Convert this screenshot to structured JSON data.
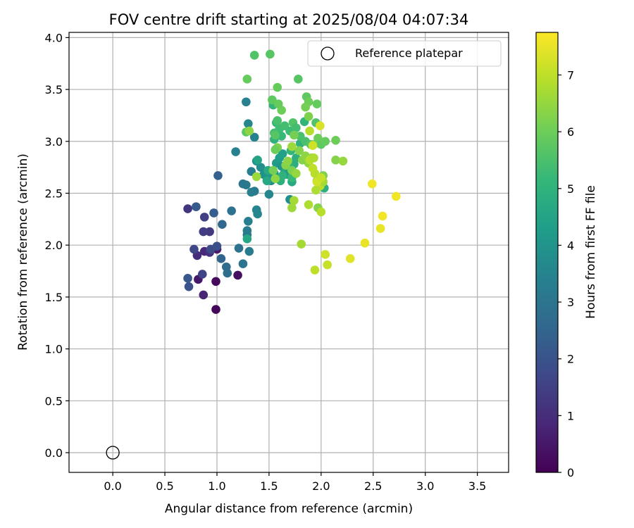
{
  "chart_data": {
    "type": "scatter",
    "title": "FOV centre drift starting at 2025/08/04 04:07:34",
    "xlabel": "Angular distance from reference (arcmin)",
    "ylabel": "Rotation from reference (arcmin)",
    "xlim": [
      -0.42,
      3.8
    ],
    "ylim": [
      -0.19,
      4.05
    ],
    "xticks": [
      "0.0",
      "0.5",
      "1.0",
      "1.5",
      "2.0",
      "2.5",
      "3.0",
      "3.5"
    ],
    "yticks": [
      "0.0",
      "0.5",
      "1.0",
      "1.5",
      "2.0",
      "2.5",
      "3.0",
      "3.5",
      "4.0"
    ],
    "grid": true,
    "legend": {
      "placement": "top-right",
      "label": "Reference platepar"
    },
    "reference_point": {
      "x": 0.0,
      "y": 0.0
    },
    "colorbar": {
      "label": "Hours from first FF file",
      "ticks": [
        "0",
        "1",
        "2",
        "3",
        "4",
        "5",
        "6",
        "7"
      ],
      "min": 0,
      "max": 7.75,
      "colormap_stops": [
        "#440154",
        "#482878",
        "#3e4989",
        "#31688e",
        "#26828e",
        "#1f9e89",
        "#35b779",
        "#6ece58",
        "#b5de2b",
        "#fde725"
      ]
    },
    "points": [
      {
        "x": 0.99,
        "y": 1.38,
        "t": 0.1
      },
      {
        "x": 0.99,
        "y": 1.65,
        "t": 0.2
      },
      {
        "x": 1.2,
        "y": 1.71,
        "t": 0.3
      },
      {
        "x": 0.82,
        "y": 1.67,
        "t": 0.5
      },
      {
        "x": 0.87,
        "y": 1.52,
        "t": 0.8
      },
      {
        "x": 1.0,
        "y": 1.96,
        "t": 0.6
      },
      {
        "x": 0.88,
        "y": 1.94,
        "t": 0.9
      },
      {
        "x": 0.81,
        "y": 1.9,
        "t": 1.0
      },
      {
        "x": 0.93,
        "y": 1.93,
        "t": 1.1
      },
      {
        "x": 0.72,
        "y": 2.35,
        "t": 1.2
      },
      {
        "x": 0.93,
        "y": 2.13,
        "t": 1.3
      },
      {
        "x": 0.87,
        "y": 2.13,
        "t": 1.4
      },
      {
        "x": 0.88,
        "y": 2.27,
        "t": 1.5
      },
      {
        "x": 0.86,
        "y": 1.72,
        "t": 1.6
      },
      {
        "x": 0.78,
        "y": 1.96,
        "t": 1.7
      },
      {
        "x": 0.94,
        "y": 1.96,
        "t": 1.8
      },
      {
        "x": 1.0,
        "y": 1.99,
        "t": 1.9
      },
      {
        "x": 0.73,
        "y": 1.6,
        "t": 2.0
      },
      {
        "x": 0.72,
        "y": 1.68,
        "t": 2.1
      },
      {
        "x": 0.8,
        "y": 2.37,
        "t": 2.2
      },
      {
        "x": 0.97,
        "y": 2.31,
        "t": 2.3
      },
      {
        "x": 1.01,
        "y": 2.67,
        "t": 2.4
      },
      {
        "x": 1.04,
        "y": 1.87,
        "t": 2.5
      },
      {
        "x": 1.05,
        "y": 2.2,
        "t": 2.6
      },
      {
        "x": 1.09,
        "y": 1.79,
        "t": 2.7
      },
      {
        "x": 1.1,
        "y": 1.73,
        "t": 2.8
      },
      {
        "x": 1.14,
        "y": 2.33,
        "t": 2.9
      },
      {
        "x": 1.21,
        "y": 1.97,
        "t": 2.9
      },
      {
        "x": 1.25,
        "y": 1.82,
        "t": 3.0
      },
      {
        "x": 1.25,
        "y": 2.59,
        "t": 3.0
      },
      {
        "x": 1.28,
        "y": 2.58,
        "t": 3.1
      },
      {
        "x": 1.29,
        "y": 2.1,
        "t": 3.1
      },
      {
        "x": 1.29,
        "y": 2.14,
        "t": 3.2
      },
      {
        "x": 1.3,
        "y": 2.23,
        "t": 3.3
      },
      {
        "x": 1.31,
        "y": 1.94,
        "t": 3.2
      },
      {
        "x": 1.33,
        "y": 2.71,
        "t": 3.3
      },
      {
        "x": 1.33,
        "y": 2.51,
        "t": 3.4
      },
      {
        "x": 1.36,
        "y": 2.52,
        "t": 3.2
      },
      {
        "x": 1.38,
        "y": 2.34,
        "t": 3.5
      },
      {
        "x": 1.39,
        "y": 2.3,
        "t": 3.6
      },
      {
        "x": 1.18,
        "y": 2.9,
        "t": 3.4
      },
      {
        "x": 1.28,
        "y": 3.38,
        "t": 3.4
      },
      {
        "x": 1.3,
        "y": 3.17,
        "t": 3.6
      },
      {
        "x": 1.36,
        "y": 3.04,
        "t": 3.4
      },
      {
        "x": 1.38,
        "y": 2.81,
        "t": 3.7
      },
      {
        "x": 1.42,
        "y": 2.75,
        "t": 3.8
      },
      {
        "x": 1.45,
        "y": 2.68,
        "t": 3.9
      },
      {
        "x": 1.48,
        "y": 2.65,
        "t": 4.0
      },
      {
        "x": 1.5,
        "y": 2.49,
        "t": 3.6
      },
      {
        "x": 1.52,
        "y": 2.62,
        "t": 3.8
      },
      {
        "x": 1.55,
        "y": 2.69,
        "t": 4.1
      },
      {
        "x": 1.57,
        "y": 2.79,
        "t": 4.2
      },
      {
        "x": 1.6,
        "y": 2.84,
        "t": 4.3
      },
      {
        "x": 1.62,
        "y": 2.76,
        "t": 4.0
      },
      {
        "x": 1.63,
        "y": 2.88,
        "t": 4.4
      },
      {
        "x": 1.65,
        "y": 2.7,
        "t": 4.5
      },
      {
        "x": 1.67,
        "y": 2.73,
        "t": 4.6
      },
      {
        "x": 1.68,
        "y": 2.68,
        "t": 4.2
      },
      {
        "x": 1.7,
        "y": 2.44,
        "t": 3.8
      },
      {
        "x": 1.72,
        "y": 2.61,
        "t": 4.7
      },
      {
        "x": 1.74,
        "y": 2.78,
        "t": 4.8
      },
      {
        "x": 1.76,
        "y": 2.84,
        "t": 4.9
      },
      {
        "x": 1.8,
        "y": 2.98,
        "t": 5.0
      },
      {
        "x": 1.84,
        "y": 3.19,
        "t": 5.1
      },
      {
        "x": 1.55,
        "y": 3.02,
        "t": 5.0
      },
      {
        "x": 1.57,
        "y": 3.18,
        "t": 5.2
      },
      {
        "x": 1.6,
        "y": 3.12,
        "t": 5.3
      },
      {
        "x": 1.62,
        "y": 3.05,
        "t": 5.2
      },
      {
        "x": 1.55,
        "y": 3.08,
        "t": 5.4
      },
      {
        "x": 1.54,
        "y": 3.35,
        "t": 5.1
      },
      {
        "x": 1.58,
        "y": 3.2,
        "t": 5.5
      },
      {
        "x": 1.65,
        "y": 3.15,
        "t": 5.4
      },
      {
        "x": 1.7,
        "y": 3.1,
        "t": 5.3
      },
      {
        "x": 1.73,
        "y": 3.18,
        "t": 5.6
      },
      {
        "x": 1.76,
        "y": 3.13,
        "t": 5.4
      },
      {
        "x": 1.8,
        "y": 3.05,
        "t": 5.5
      },
      {
        "x": 1.85,
        "y": 3.0,
        "t": 5.5
      },
      {
        "x": 1.9,
        "y": 2.97,
        "t": 5.6
      },
      {
        "x": 1.95,
        "y": 3.18,
        "t": 5.6
      },
      {
        "x": 2.03,
        "y": 2.55,
        "t": 4.9
      },
      {
        "x": 1.48,
        "y": 2.62,
        "t": 4.6
      },
      {
        "x": 1.61,
        "y": 2.62,
        "t": 4.9
      },
      {
        "x": 1.63,
        "y": 2.67,
        "t": 5.0
      },
      {
        "x": 1.69,
        "y": 2.77,
        "t": 5.0
      },
      {
        "x": 1.72,
        "y": 2.65,
        "t": 5.2
      },
      {
        "x": 1.71,
        "y": 2.91,
        "t": 5.1
      },
      {
        "x": 1.39,
        "y": 2.82,
        "t": 4.5
      },
      {
        "x": 1.49,
        "y": 2.72,
        "t": 4.7
      },
      {
        "x": 1.56,
        "y": 3.06,
        "t": 5.7
      },
      {
        "x": 1.28,
        "y": 3.09,
        "t": 5.8
      },
      {
        "x": 1.29,
        "y": 2.06,
        "t": 4.6
      },
      {
        "x": 1.36,
        "y": 3.83,
        "t": 5.6
      },
      {
        "x": 1.51,
        "y": 3.84,
        "t": 5.7
      },
      {
        "x": 1.29,
        "y": 3.6,
        "t": 5.9
      },
      {
        "x": 1.78,
        "y": 3.6,
        "t": 5.7
      },
      {
        "x": 1.58,
        "y": 3.52,
        "t": 5.9
      },
      {
        "x": 1.53,
        "y": 3.4,
        "t": 5.8
      },
      {
        "x": 1.59,
        "y": 3.36,
        "t": 5.9
      },
      {
        "x": 1.62,
        "y": 3.3,
        "t": 6.0
      },
      {
        "x": 1.86,
        "y": 3.43,
        "t": 5.8
      },
      {
        "x": 1.88,
        "y": 3.38,
        "t": 6.0
      },
      {
        "x": 1.96,
        "y": 3.36,
        "t": 5.9
      },
      {
        "x": 1.85,
        "y": 3.33,
        "t": 6.1
      },
      {
        "x": 1.88,
        "y": 3.24,
        "t": 6.2
      },
      {
        "x": 1.74,
        "y": 3.06,
        "t": 6.1
      },
      {
        "x": 1.79,
        "y": 2.91,
        "t": 6.3
      },
      {
        "x": 1.82,
        "y": 2.82,
        "t": 6.3
      },
      {
        "x": 1.85,
        "y": 2.86,
        "t": 6.4
      },
      {
        "x": 1.88,
        "y": 2.79,
        "t": 6.4
      },
      {
        "x": 1.91,
        "y": 2.84,
        "t": 6.5
      },
      {
        "x": 1.93,
        "y": 2.97,
        "t": 6.2
      },
      {
        "x": 1.97,
        "y": 3.03,
        "t": 6.0
      },
      {
        "x": 2.0,
        "y": 2.97,
        "t": 5.8
      },
      {
        "x": 2.04,
        "y": 3.0,
        "t": 5.9
      },
      {
        "x": 2.14,
        "y": 3.01,
        "t": 6.0
      },
      {
        "x": 2.14,
        "y": 2.82,
        "t": 6.3
      },
      {
        "x": 2.21,
        "y": 2.81,
        "t": 6.5
      },
      {
        "x": 1.58,
        "y": 2.94,
        "t": 6.2
      },
      {
        "x": 1.56,
        "y": 2.92,
        "t": 6.0
      },
      {
        "x": 1.54,
        "y": 2.72,
        "t": 6.1
      },
      {
        "x": 1.66,
        "y": 2.77,
        "t": 6.3
      },
      {
        "x": 1.68,
        "y": 2.81,
        "t": 6.4
      },
      {
        "x": 1.72,
        "y": 2.72,
        "t": 6.2
      },
      {
        "x": 1.76,
        "y": 2.69,
        "t": 6.5
      },
      {
        "x": 1.56,
        "y": 2.64,
        "t": 6.4
      },
      {
        "x": 1.72,
        "y": 2.95,
        "t": 6.6
      },
      {
        "x": 1.31,
        "y": 3.1,
        "t": 6.4
      },
      {
        "x": 1.38,
        "y": 2.66,
        "t": 6.6
      },
      {
        "x": 1.72,
        "y": 2.36,
        "t": 6.6
      },
      {
        "x": 1.74,
        "y": 2.43,
        "t": 6.7
      },
      {
        "x": 1.81,
        "y": 2.01,
        "t": 6.7
      },
      {
        "x": 1.88,
        "y": 2.39,
        "t": 6.8
      },
      {
        "x": 1.97,
        "y": 2.36,
        "t": 6.3
      },
      {
        "x": 2.0,
        "y": 2.32,
        "t": 6.9
      },
      {
        "x": 1.96,
        "y": 2.62,
        "t": 6.2
      },
      {
        "x": 1.99,
        "y": 2.57,
        "t": 7.0
      },
      {
        "x": 2.02,
        "y": 2.67,
        "t": 6.2
      },
      {
        "x": 2.02,
        "y": 2.61,
        "t": 6.7
      },
      {
        "x": 1.94,
        "y": 2.69,
        "t": 6.9
      },
      {
        "x": 1.95,
        "y": 2.53,
        "t": 6.8
      },
      {
        "x": 1.89,
        "y": 3.1,
        "t": 6.9
      },
      {
        "x": 1.96,
        "y": 2.61,
        "t": 7.2
      },
      {
        "x": 2.0,
        "y": 2.65,
        "t": 7.1
      },
      {
        "x": 1.99,
        "y": 3.15,
        "t": 7.3
      },
      {
        "x": 1.92,
        "y": 2.96,
        "t": 7.2
      },
      {
        "x": 1.92,
        "y": 2.74,
        "t": 7.0
      },
      {
        "x": 1.89,
        "y": 2.82,
        "t": 6.9
      },
      {
        "x": 1.93,
        "y": 2.84,
        "t": 6.8
      },
      {
        "x": 1.94,
        "y": 1.76,
        "t": 7.0
      },
      {
        "x": 2.04,
        "y": 1.91,
        "t": 7.2
      },
      {
        "x": 2.06,
        "y": 1.81,
        "t": 7.1
      },
      {
        "x": 2.28,
        "y": 1.87,
        "t": 7.4
      },
      {
        "x": 2.42,
        "y": 2.02,
        "t": 7.5
      },
      {
        "x": 2.49,
        "y": 2.59,
        "t": 7.6
      },
      {
        "x": 2.57,
        "y": 2.16,
        "t": 7.5
      },
      {
        "x": 2.59,
        "y": 2.28,
        "t": 7.6
      },
      {
        "x": 2.72,
        "y": 2.47,
        "t": 7.6
      }
    ]
  }
}
